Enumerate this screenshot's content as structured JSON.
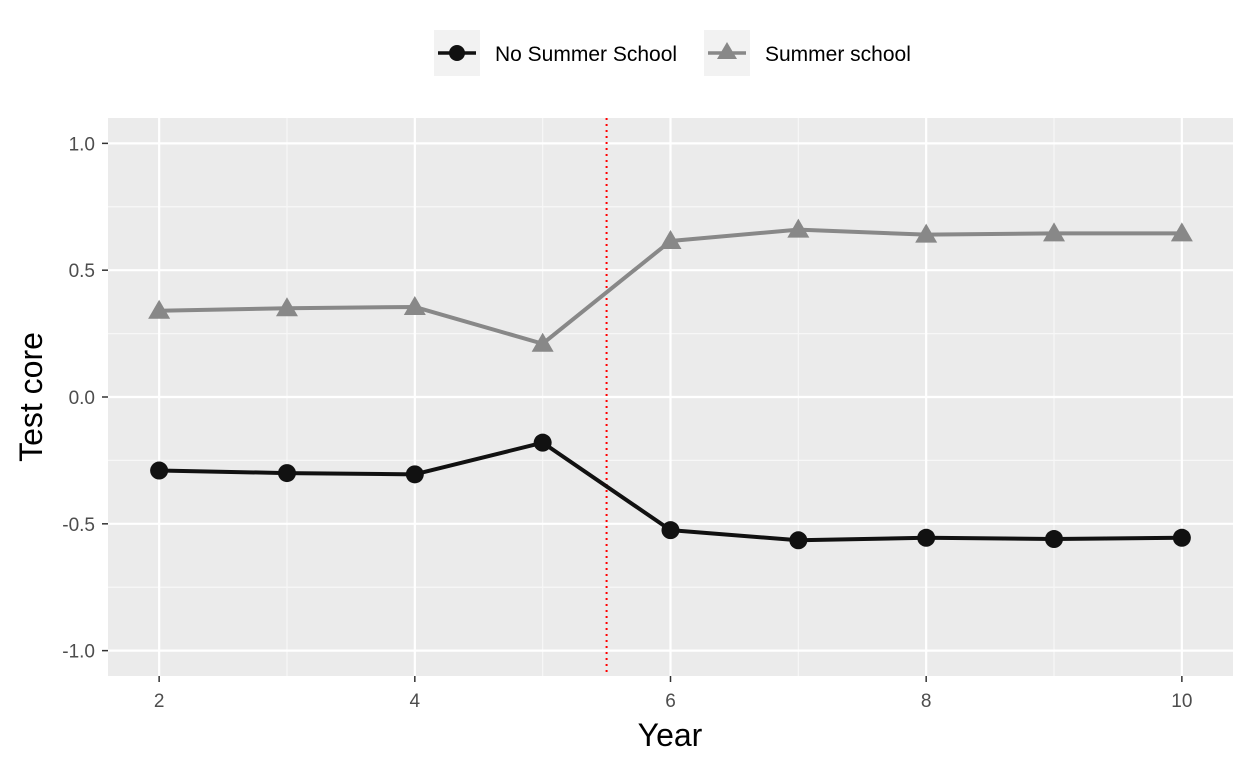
{
  "chart_data": {
    "type": "line",
    "xlabel": "Year",
    "ylabel": "Test core",
    "xlim": [
      1.6,
      10.4
    ],
    "ylim": [
      -1.1,
      1.1
    ],
    "x_ticks": [
      2,
      4,
      6,
      8,
      10
    ],
    "x_tick_labels": [
      "2",
      "4",
      "6",
      "8",
      "10"
    ],
    "y_ticks": [
      -1.0,
      -0.5,
      0.0,
      0.5,
      1.0
    ],
    "y_tick_labels": [
      "-1.0",
      "-0.5",
      "0.0",
      "0.5",
      "1.0"
    ],
    "grid": true,
    "legend_position": "top",
    "x": [
      2,
      3,
      4,
      5,
      6,
      7,
      8,
      9,
      10
    ],
    "series": [
      {
        "name": "No Summer School",
        "marker": "circle",
        "color": "#111111",
        "values": [
          -0.29,
          -0.3,
          -0.305,
          -0.18,
          -0.525,
          -0.565,
          -0.555,
          -0.56,
          -0.555
        ]
      },
      {
        "name": "Summer school",
        "marker": "triangle",
        "color": "#888888",
        "values": [
          0.34,
          0.35,
          0.355,
          0.21,
          0.615,
          0.66,
          0.64,
          0.645,
          0.645
        ]
      }
    ],
    "vline": {
      "x": 5.5,
      "color": "#ff0000",
      "style": "dotted"
    }
  }
}
